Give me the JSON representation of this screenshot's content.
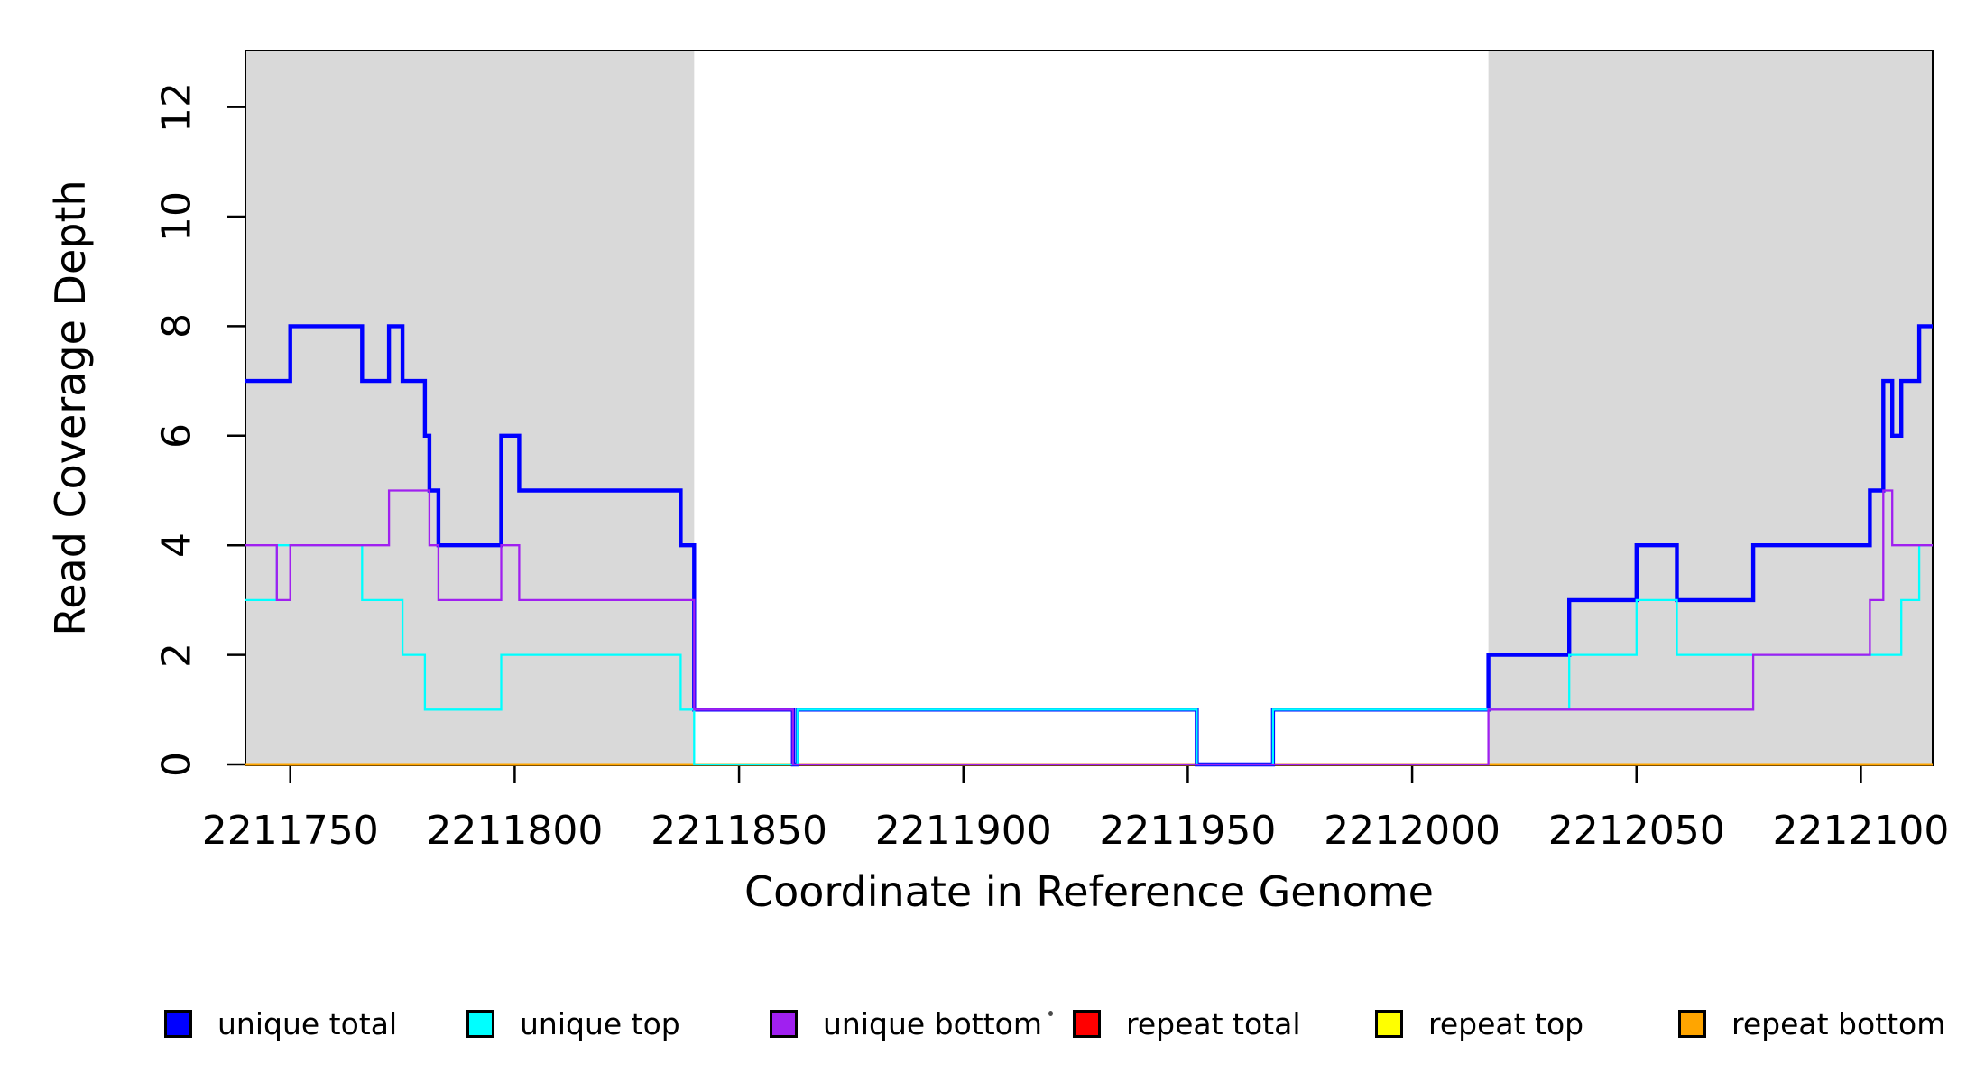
{
  "chart_data": {
    "type": "step",
    "step_mode": "post",
    "title": "",
    "xlabel": "Coordinate in Reference Genome",
    "ylabel": "Read Coverage Depth",
    "x_range": [
      2211740,
      2212116
    ],
    "y_range": [
      0,
      13
    ],
    "x_ticks": [
      "2211750",
      "2211800",
      "2211850",
      "2211900",
      "2211950",
      "2212000",
      "2212050",
      "2212100"
    ],
    "y_ticks": [
      "0",
      "2",
      "4",
      "6",
      "8",
      "10",
      "12"
    ],
    "grid": false,
    "legend_position": "bottom",
    "plot_background": "#ffffff",
    "shaded_region_color": "#D9D9D9",
    "shaded_regions": [
      {
        "x0": 2211740,
        "x1": 2211840
      },
      {
        "x0": 2212017,
        "x1": 2212116
      }
    ],
    "series": [
      {
        "name": "repeat total",
        "color": "#FF0000",
        "width": 2.6,
        "breakpoints": [
          [
            2211740,
            0
          ],
          [
            2212116,
            0
          ]
        ]
      },
      {
        "name": "repeat top",
        "color": "#FFFF00",
        "width": 2.3,
        "breakpoints": [
          [
            2211740,
            0
          ],
          [
            2212116,
            0
          ]
        ]
      },
      {
        "name": "repeat bottom",
        "color": "#FFA500",
        "width": 3.0,
        "breakpoints": [
          [
            2211740,
            0
          ],
          [
            2212116,
            0
          ]
        ]
      },
      {
        "name": "unique total",
        "color": "#0000FF",
        "width": 4.4,
        "breakpoints": [
          [
            2211740,
            7
          ],
          [
            2211750,
            8
          ],
          [
            2211766,
            7
          ],
          [
            2211772,
            8
          ],
          [
            2211775,
            7
          ],
          [
            2211780,
            6
          ],
          [
            2211781,
            5
          ],
          [
            2211783,
            4
          ],
          [
            2211797,
            6
          ],
          [
            2211801,
            5
          ],
          [
            2211837,
            4
          ],
          [
            2211840,
            1
          ],
          [
            2211862,
            0
          ],
          [
            2211863,
            1
          ],
          [
            2211952,
            0
          ],
          [
            2211969,
            1
          ],
          [
            2212017,
            2
          ],
          [
            2212035,
            3
          ],
          [
            2212050,
            4
          ],
          [
            2212059,
            3
          ],
          [
            2212076,
            4
          ],
          [
            2212102,
            5
          ],
          [
            2212105,
            7
          ],
          [
            2212107,
            6
          ],
          [
            2212109,
            7
          ],
          [
            2212113,
            8
          ],
          [
            2212116,
            8
          ]
        ]
      },
      {
        "name": "unique top",
        "color": "#00FFFF",
        "width": 2.3,
        "breakpoints": [
          [
            2211740,
            3
          ],
          [
            2211747,
            4
          ],
          [
            2211766,
            3
          ],
          [
            2211775,
            2
          ],
          [
            2211780,
            1
          ],
          [
            2211797,
            2
          ],
          [
            2211837,
            1
          ],
          [
            2211840,
            0
          ],
          [
            2211863,
            1
          ],
          [
            2211952,
            0
          ],
          [
            2211969,
            1
          ],
          [
            2212035,
            2
          ],
          [
            2212050,
            3
          ],
          [
            2212059,
            2
          ],
          [
            2212109,
            3
          ],
          [
            2212113,
            4
          ],
          [
            2212116,
            4
          ]
        ]
      },
      {
        "name": "unique bottom",
        "color": "#A020F0",
        "width": 2.3,
        "breakpoints": [
          [
            2211740,
            4
          ],
          [
            2211747,
            3
          ],
          [
            2211750,
            4
          ],
          [
            2211772,
            5
          ],
          [
            2211781,
            4
          ],
          [
            2211783,
            3
          ],
          [
            2211797,
            4
          ],
          [
            2211801,
            3
          ],
          [
            2211840,
            1
          ],
          [
            2211862,
            0
          ],
          [
            2212017,
            1
          ],
          [
            2212076,
            2
          ],
          [
            2212102,
            3
          ],
          [
            2212105,
            5
          ],
          [
            2212107,
            4
          ],
          [
            2212116,
            4
          ]
        ]
      }
    ],
    "legend": [
      {
        "label": "unique total",
        "color": "#0000FF"
      },
      {
        "label": "unique top",
        "color": "#00FFFF"
      },
      {
        "label": "unique bottom",
        "color": "#A020F0"
      },
      {
        "label": "repeat total",
        "color": "#FF0000"
      },
      {
        "label": "repeat top",
        "color": "#FFFF00"
      },
      {
        "label": "repeat bottom",
        "color": "#FFA500"
      }
    ]
  }
}
